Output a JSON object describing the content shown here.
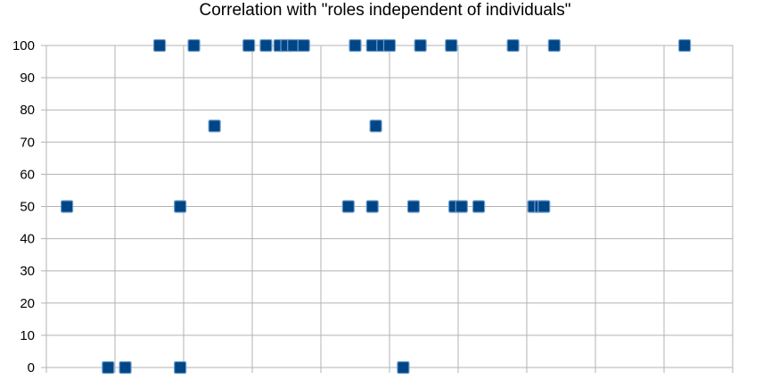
{
  "chart_data": {
    "type": "scatter",
    "title": "Correlation with \"roles independent of individuals\"",
    "xlabel": "",
    "ylabel": "",
    "ylim": [
      0,
      100
    ],
    "yticks": [
      "0",
      "10",
      "20",
      "30",
      "40",
      "50",
      "60",
      "70",
      "80",
      "90",
      "100"
    ],
    "xlim": [
      0,
      10
    ],
    "grid": true,
    "legend": "none",
    "marker_color": "#004586",
    "series": [
      {
        "points": [
          {
            "x": 0.3,
            "y": 50
          },
          {
            "x": 0.9,
            "y": 0
          },
          {
            "x": 1.15,
            "y": 0
          },
          {
            "x": 1.65,
            "y": 100
          },
          {
            "x": 1.95,
            "y": 0
          },
          {
            "x": 1.95,
            "y": 50
          },
          {
            "x": 2.15,
            "y": 100
          },
          {
            "x": 2.45,
            "y": 75
          },
          {
            "x": 2.95,
            "y": 100
          },
          {
            "x": 3.2,
            "y": 100
          },
          {
            "x": 3.4,
            "y": 100
          },
          {
            "x": 3.5,
            "y": 100
          },
          {
            "x": 3.6,
            "y": 100
          },
          {
            "x": 3.75,
            "y": 100
          },
          {
            "x": 4.4,
            "y": 50
          },
          {
            "x": 4.5,
            "y": 100
          },
          {
            "x": 4.75,
            "y": 50
          },
          {
            "x": 4.75,
            "y": 100
          },
          {
            "x": 4.8,
            "y": 75
          },
          {
            "x": 4.9,
            "y": 100
          },
          {
            "x": 5.0,
            "y": 100
          },
          {
            "x": 5.2,
            "y": 0
          },
          {
            "x": 5.35,
            "y": 50
          },
          {
            "x": 5.45,
            "y": 100
          },
          {
            "x": 5.9,
            "y": 100
          },
          {
            "x": 5.95,
            "y": 50
          },
          {
            "x": 6.05,
            "y": 50
          },
          {
            "x": 6.3,
            "y": 50
          },
          {
            "x": 6.8,
            "y": 100
          },
          {
            "x": 7.1,
            "y": 50
          },
          {
            "x": 7.2,
            "y": 50
          },
          {
            "x": 7.25,
            "y": 50
          },
          {
            "x": 7.4,
            "y": 100
          },
          {
            "x": 9.3,
            "y": 100
          }
        ]
      }
    ]
  }
}
